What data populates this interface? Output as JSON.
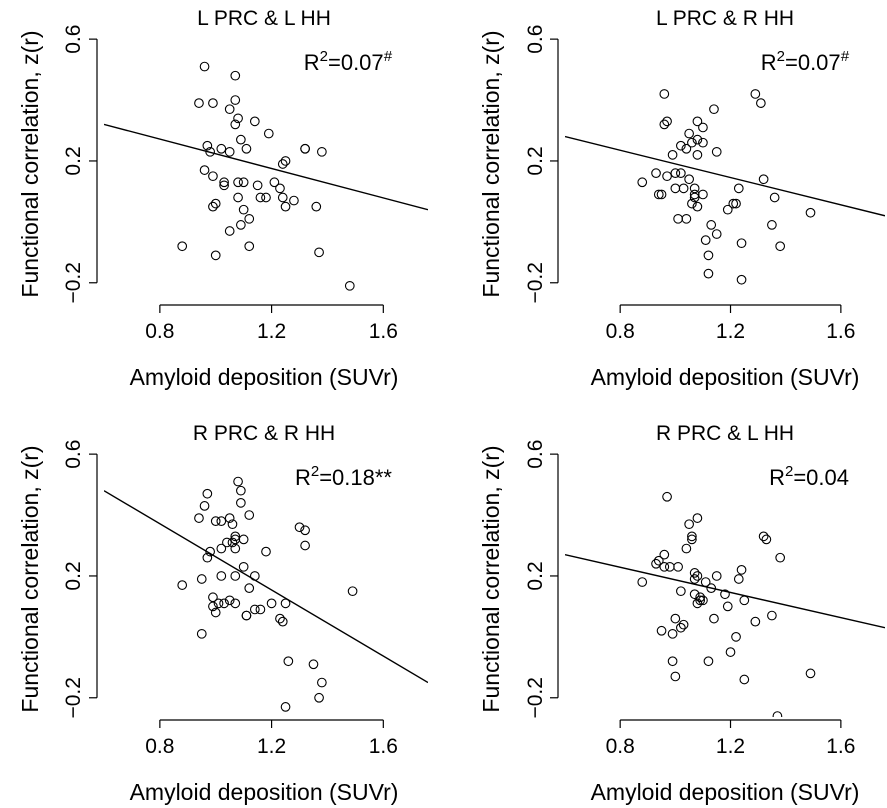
{
  "chart_data": [
    {
      "type": "scatter",
      "title": "L PRC & L HH",
      "xlabel": "Amyloid deposition (SUVr)",
      "ylabel": "Functional correlation, z(r)",
      "xlim": [
        0.6,
        1.76
      ],
      "ylim": [
        -0.25,
        0.63
      ],
      "xticks": [
        "0.8",
        "1.2",
        "1.6"
      ],
      "yticks": [
        "-0.2",
        "0.2",
        "0.6"
      ],
      "stat_base": "R",
      "stat_sup": "2",
      "stat_value": "=0.07",
      "stat_mark": "#",
      "line": {
        "x": [
          0.6,
          1.76
        ],
        "y": [
          0.32,
          0.04
        ]
      },
      "points": [
        [
          0.88,
          -0.08
        ],
        [
          0.94,
          0.39
        ],
        [
          0.96,
          0.51
        ],
        [
          0.97,
          0.25
        ],
        [
          0.98,
          0.23
        ],
        [
          0.96,
          0.17
        ],
        [
          0.99,
          0.39
        ],
        [
          0.99,
          0.15
        ],
        [
          1.0,
          0.06
        ],
        [
          0.99,
          0.05
        ],
        [
          1.0,
          -0.11
        ],
        [
          1.02,
          0.24
        ],
        [
          1.03,
          0.13
        ],
        [
          1.03,
          0.12
        ],
        [
          1.05,
          0.23
        ],
        [
          1.05,
          0.37
        ],
        [
          1.05,
          -0.03
        ],
        [
          1.07,
          0.48
        ],
        [
          1.07,
          0.32
        ],
        [
          1.07,
          0.4
        ],
        [
          1.08,
          0.34
        ],
        [
          1.08,
          0.13
        ],
        [
          1.08,
          0.08
        ],
        [
          1.09,
          0.27
        ],
        [
          1.09,
          -0.01
        ],
        [
          1.1,
          0.13
        ],
        [
          1.1,
          0.04
        ],
        [
          1.11,
          0.24
        ],
        [
          1.12,
          0.01
        ],
        [
          1.12,
          -0.08
        ],
        [
          1.14,
          0.33
        ],
        [
          1.15,
          0.12
        ],
        [
          1.16,
          0.08
        ],
        [
          1.18,
          0.08
        ],
        [
          1.19,
          0.29
        ],
        [
          1.21,
          0.13
        ],
        [
          1.23,
          0.11
        ],
        [
          1.24,
          0.19
        ],
        [
          1.24,
          0.08
        ],
        [
          1.25,
          0.2
        ],
        [
          1.25,
          0.05
        ],
        [
          1.28,
          0.07
        ],
        [
          1.32,
          0.24
        ],
        [
          1.32,
          0.24
        ],
        [
          1.36,
          0.05
        ],
        [
          1.37,
          -0.1
        ],
        [
          1.38,
          0.23
        ],
        [
          1.48,
          -0.21
        ]
      ]
    },
    {
      "type": "scatter",
      "title": "L PRC & R HH",
      "xlabel": "Amyloid deposition (SUVr)",
      "ylabel": "Functional correlation, z(r)",
      "xlim": [
        0.6,
        1.76
      ],
      "ylim": [
        -0.25,
        0.63
      ],
      "xticks": [
        "0.8",
        "1.2",
        "1.6"
      ],
      "yticks": [
        "-0.2",
        "0.2",
        "0.6"
      ],
      "stat_base": "R",
      "stat_sup": "2",
      "stat_value": "=0.07",
      "stat_mark": "#",
      "line": {
        "x": [
          0.6,
          1.76
        ],
        "y": [
          0.28,
          0.02
        ]
      },
      "points": [
        [
          0.88,
          0.13
        ],
        [
          0.93,
          0.16
        ],
        [
          0.94,
          0.09
        ],
        [
          0.95,
          0.09
        ],
        [
          0.96,
          0.42
        ],
        [
          0.96,
          0.32
        ],
        [
          0.97,
          0.33
        ],
        [
          0.97,
          0.15
        ],
        [
          0.99,
          0.22
        ],
        [
          1.0,
          0.16
        ],
        [
          1.0,
          0.11
        ],
        [
          1.01,
          0.01
        ],
        [
          1.02,
          0.16
        ],
        [
          1.02,
          0.25
        ],
        [
          1.03,
          0.11
        ],
        [
          1.04,
          0.01
        ],
        [
          1.04,
          0.24
        ],
        [
          1.05,
          0.29
        ],
        [
          1.05,
          0.14
        ],
        [
          1.06,
          0.06
        ],
        [
          1.06,
          0.26
        ],
        [
          1.07,
          0.11
        ],
        [
          1.07,
          0.09
        ],
        [
          1.07,
          0.08
        ],
        [
          1.08,
          0.33
        ],
        [
          1.08,
          0.27
        ],
        [
          1.08,
          0.22
        ],
        [
          1.08,
          0.05
        ],
        [
          1.1,
          0.31
        ],
        [
          1.1,
          0.26
        ],
        [
          1.1,
          0.09
        ],
        [
          1.11,
          -0.06
        ],
        [
          1.12,
          -0.11
        ],
        [
          1.12,
          -0.17
        ],
        [
          1.13,
          -0.01
        ],
        [
          1.14,
          0.37
        ],
        [
          1.15,
          0.23
        ],
        [
          1.15,
          -0.04
        ],
        [
          1.19,
          0.04
        ],
        [
          1.21,
          0.06
        ],
        [
          1.22,
          0.06
        ],
        [
          1.23,
          0.11
        ],
        [
          1.24,
          -0.19
        ],
        [
          1.24,
          -0.07
        ],
        [
          1.29,
          0.42
        ],
        [
          1.31,
          0.39
        ],
        [
          1.32,
          0.14
        ],
        [
          1.35,
          -0.01
        ],
        [
          1.36,
          0.08
        ],
        [
          1.38,
          -0.08
        ],
        [
          1.49,
          0.03
        ]
      ]
    },
    {
      "type": "scatter",
      "title": "R PRC & R HH",
      "xlabel": "Amyloid deposition (SUVr)",
      "ylabel": "Functional correlation, z(r)",
      "xlim": [
        0.6,
        1.76
      ],
      "ylim": [
        -0.25,
        0.63
      ],
      "xticks": [
        "0.8",
        "1.2",
        "1.6"
      ],
      "yticks": [
        "-0.2",
        "0.2",
        "0.6"
      ],
      "stat_base": "R",
      "stat_sup": "2",
      "stat_value": "=0.18",
      "stat_mark": "**",
      "line": {
        "x": [
          0.6,
          1.76
        ],
        "y": [
          0.48,
          -0.15
        ]
      },
      "points": [
        [
          0.88,
          0.17
        ],
        [
          0.94,
          0.39
        ],
        [
          0.95,
          0.19
        ],
        [
          0.95,
          0.01
        ],
        [
          0.96,
          0.43
        ],
        [
          0.97,
          0.47
        ],
        [
          0.97,
          0.26
        ],
        [
          0.98,
          0.28
        ],
        [
          0.99,
          0.13
        ],
        [
          0.99,
          0.1
        ],
        [
          1.0,
          0.38
        ],
        [
          1.0,
          0.08
        ],
        [
          1.01,
          0.11
        ],
        [
          1.02,
          0.29
        ],
        [
          1.02,
          0.2
        ],
        [
          1.02,
          0.38
        ],
        [
          1.03,
          0.11
        ],
        [
          1.04,
          0.31
        ],
        [
          1.05,
          0.39
        ],
        [
          1.05,
          0.12
        ],
        [
          1.06,
          0.31
        ],
        [
          1.06,
          0.37
        ],
        [
          1.07,
          0.33
        ],
        [
          1.07,
          0.32
        ],
        [
          1.07,
          0.29
        ],
        [
          1.07,
          0.2
        ],
        [
          1.07,
          0.11
        ],
        [
          1.08,
          0.51
        ],
        [
          1.09,
          0.48
        ],
        [
          1.09,
          0.44
        ],
        [
          1.1,
          0.32
        ],
        [
          1.1,
          0.23
        ],
        [
          1.11,
          0.07
        ],
        [
          1.11,
          0.07
        ],
        [
          1.12,
          0.16
        ],
        [
          1.12,
          0.4
        ],
        [
          1.14,
          0.2
        ],
        [
          1.14,
          0.09
        ],
        [
          1.16,
          0.09
        ],
        [
          1.18,
          0.28
        ],
        [
          1.2,
          0.11
        ],
        [
          1.23,
          0.06
        ],
        [
          1.24,
          0.05
        ],
        [
          1.25,
          0.11
        ],
        [
          1.25,
          -0.23
        ],
        [
          1.26,
          -0.08
        ],
        [
          1.3,
          0.36
        ],
        [
          1.32,
          0.35
        ],
        [
          1.32,
          0.3
        ],
        [
          1.35,
          -0.09
        ],
        [
          1.37,
          -0.2
        ],
        [
          1.38,
          -0.15
        ],
        [
          1.49,
          0.15
        ]
      ]
    },
    {
      "type": "scatter",
      "title": "R PRC & L HH",
      "xlabel": "Amyloid deposition (SUVr)",
      "ylabel": "Functional correlation, z(r)",
      "xlim": [
        0.6,
        1.76
      ],
      "ylim": [
        -0.25,
        0.63
      ],
      "xticks": [
        "0.8",
        "1.2",
        "1.6"
      ],
      "yticks": [
        "-0.2",
        "0.2",
        "0.6"
      ],
      "stat_base": "R",
      "stat_sup": "2",
      "stat_value": "=0.04",
      "stat_mark": "",
      "line": {
        "x": [
          0.6,
          1.76
        ],
        "y": [
          0.27,
          0.03
        ]
      },
      "points": [
        [
          0.88,
          0.18
        ],
        [
          0.93,
          0.24
        ],
        [
          0.94,
          0.25
        ],
        [
          0.95,
          0.02
        ],
        [
          0.96,
          0.27
        ],
        [
          0.96,
          0.23
        ],
        [
          0.97,
          0.46
        ],
        [
          0.98,
          0.23
        ],
        [
          0.99,
          0.01
        ],
        [
          0.99,
          -0.08
        ],
        [
          1.0,
          -0.13
        ],
        [
          1.0,
          0.06
        ],
        [
          1.01,
          0.23
        ],
        [
          1.02,
          0.15
        ],
        [
          1.02,
          0.03
        ],
        [
          1.03,
          0.04
        ],
        [
          1.04,
          0.29
        ],
        [
          1.05,
          0.37
        ],
        [
          1.06,
          0.33
        ],
        [
          1.06,
          0.32
        ],
        [
          1.07,
          0.21
        ],
        [
          1.07,
          0.19
        ],
        [
          1.07,
          0.14
        ],
        [
          1.08,
          0.39
        ],
        [
          1.08,
          0.2
        ],
        [
          1.08,
          0.11
        ],
        [
          1.09,
          0.13
        ],
        [
          1.09,
          0.12
        ],
        [
          1.1,
          0.12
        ],
        [
          1.11,
          0.18
        ],
        [
          1.12,
          -0.08
        ],
        [
          1.13,
          0.16
        ],
        [
          1.14,
          0.06
        ],
        [
          1.15,
          0.2
        ],
        [
          1.18,
          0.14
        ],
        [
          1.19,
          0.1
        ],
        [
          1.2,
          -0.05
        ],
        [
          1.22,
          0.0
        ],
        [
          1.23,
          0.19
        ],
        [
          1.24,
          0.22
        ],
        [
          1.25,
          0.12
        ],
        [
          1.25,
          -0.14
        ],
        [
          1.29,
          0.05
        ],
        [
          1.32,
          0.33
        ],
        [
          1.33,
          0.32
        ],
        [
          1.35,
          0.07
        ],
        [
          1.37,
          -0.26
        ],
        [
          1.38,
          0.26
        ],
        [
          1.49,
          -0.12
        ]
      ]
    }
  ]
}
